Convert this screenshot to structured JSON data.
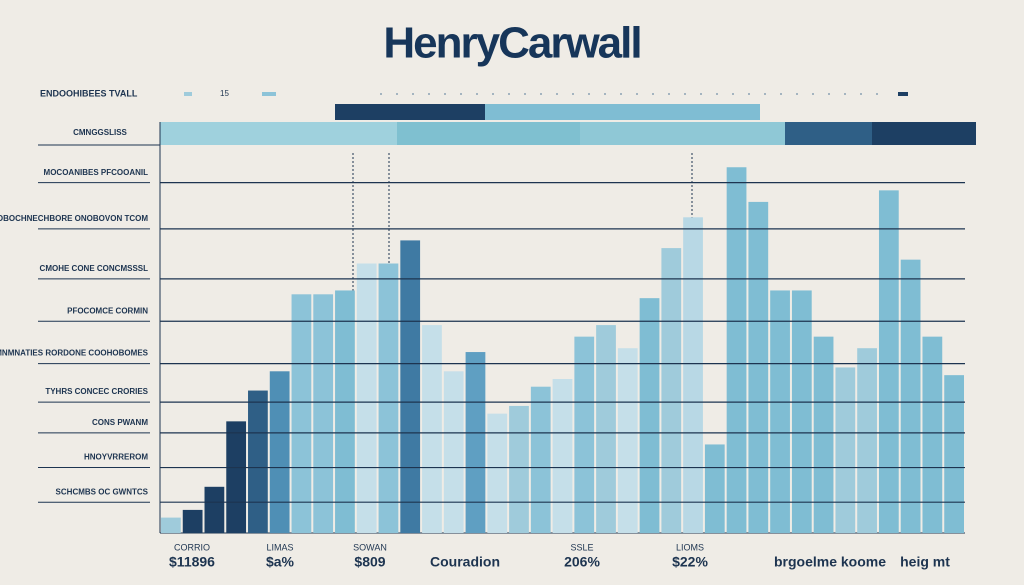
{
  "chart_data": {
    "type": "bar",
    "title": "HenryCarwall",
    "header_label": "ENDOOHIBEES TVALL",
    "header_note": "15",
    "banner_label": "CMNGGSLISS",
    "ylim": [
      0,
      100
    ],
    "yticks": [
      {
        "value": 91,
        "label": "MOCOANIBES PFCOOANIL"
      },
      {
        "value": 79,
        "label": "DMOBOCHNECHBORE ONOBOVON TCOM"
      },
      {
        "value": 66,
        "label": "CMOHE CONE CONCMSSSL"
      },
      {
        "value": 55,
        "label": "PFOCOMCE CORMIN"
      },
      {
        "value": 44,
        "label": "CMNMNATIES RORDONE COOHOBOMES"
      },
      {
        "value": 34,
        "label": "TYHRS CONCEC CRORIES"
      },
      {
        "value": 26,
        "label": "CONS PWANM"
      },
      {
        "value": 17,
        "label": "HNOYVRREROM"
      },
      {
        "value": 8,
        "label": "SCHCMBS OC GWNTCS"
      }
    ],
    "grid": true,
    "values": [
      4,
      6,
      12,
      29,
      37,
      42,
      62,
      62,
      63,
      70,
      70,
      76,
      54,
      42,
      47,
      31,
      33,
      38,
      40,
      51,
      54,
      48,
      61,
      74,
      82,
      23,
      95,
      86,
      63,
      63,
      51,
      43,
      48,
      89,
      71,
      51,
      41
    ],
    "colors": [
      "#9fcbdb",
      "#1d3f63",
      "#1d3f63",
      "#1d3f63",
      "#2f5f86",
      "#4f8fb5",
      "#8cc3d8",
      "#8cc3d8",
      "#7fbdd3",
      "#c5dfe9",
      "#8cc3d8",
      "#3f7aa3",
      "#c5dfe9",
      "#c5dfe9",
      "#5f9fc2",
      "#c5dfe9",
      "#9fcbdb",
      "#8cc3d8",
      "#c5dfe9",
      "#8cc3d8",
      "#9fcbdb",
      "#c5dfe9",
      "#7fbdd3",
      "#9fcbdb",
      "#b8d8e5",
      "#7fbdd3",
      "#7fbdd3",
      "#7fbdd3",
      "#7fbdd3",
      "#7fbdd3",
      "#7fbdd3",
      "#9fcbdb",
      "#9fcbdb",
      "#7fbdd3",
      "#7fbdd3",
      "#7fbdd3",
      "#7fbdd3"
    ],
    "bottom_labels": [
      {
        "small": "CORRIO",
        "big": "$11896"
      },
      {
        "small": "LIMAS",
        "big": "$a%"
      },
      {
        "small": "SOWAN",
        "big": "$809"
      },
      {
        "big": "Couradion"
      },
      {
        "small": "SSLE",
        "big": "206%"
      },
      {
        "small": "LIOMS",
        "big": "$22%"
      },
      {
        "big": "brgoelme koome"
      },
      {
        "big": "heig mt"
      }
    ]
  }
}
